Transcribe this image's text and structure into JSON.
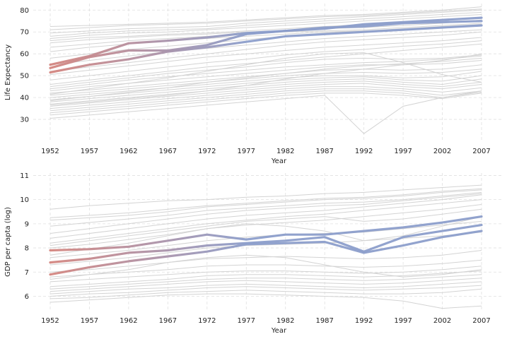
{
  "chart_data": [
    {
      "type": "line",
      "xlabel": "Year",
      "ylabel": "Life Expectancy",
      "x": [
        1952,
        1957,
        1962,
        1967,
        1972,
        1977,
        1982,
        1987,
        1992,
        1997,
        2002,
        2007
      ],
      "xticks": [
        "1952",
        "1957",
        "1962",
        "1967",
        "1972",
        "1977",
        "1982",
        "1987",
        "1992",
        "1997",
        "2002",
        "2007"
      ],
      "yticks": [
        "30",
        "40",
        "50",
        "60",
        "70",
        "80"
      ],
      "ylim": [
        20,
        83
      ],
      "grid": true,
      "colors": {
        "background": "#d3d3d3",
        "start": "#d4857f",
        "end": "#8c9ecb"
      },
      "highlight_series": [
        {
          "values": [
            55.0,
            59.0,
            64.8,
            66.0,
            67.5,
            69.5,
            70.5,
            71.5,
            73.5,
            74.5,
            75.5,
            76.5
          ]
        },
        {
          "values": [
            53.5,
            58.5,
            61.5,
            61.5,
            64.0,
            69.0,
            70.5,
            72.0,
            72.5,
            74.0,
            74.5,
            75.0
          ]
        },
        {
          "values": [
            51.5,
            55.0,
            57.5,
            61.0,
            63.0,
            65.5,
            68.0,
            69.0,
            70.0,
            71.0,
            72.0,
            73.0
          ]
        }
      ],
      "background_series": [
        [
          72.5,
          73.0,
          73.5,
          74.0,
          74.5,
          75.5,
          76.5,
          77.5,
          78.0,
          79.0,
          80.0,
          81.5
        ],
        [
          71.0,
          72.0,
          73.0,
          73.5,
          74.0,
          75.0,
          76.0,
          77.0,
          77.5,
          78.5,
          79.5,
          80.5
        ],
        [
          69.5,
          70.5,
          71.5,
          72.0,
          72.5,
          74.0,
          75.0,
          76.0,
          77.0,
          78.0,
          79.0,
          80.0
        ],
        [
          68.0,
          69.5,
          70.5,
          71.0,
          71.5,
          73.0,
          74.0,
          75.0,
          76.0,
          77.0,
          78.0,
          79.0
        ],
        [
          67.0,
          68.5,
          69.5,
          70.0,
          71.0,
          72.0,
          73.0,
          74.0,
          75.0,
          76.0,
          77.0,
          78.0
        ],
        [
          66.0,
          67.5,
          68.0,
          69.0,
          69.5,
          70.5,
          71.5,
          72.5,
          73.5,
          74.5,
          75.5,
          76.5
        ],
        [
          65.0,
          66.5,
          67.5,
          68.5,
          69.0,
          70.0,
          70.5,
          71.5,
          72.0,
          73.0,
          74.0,
          75.5
        ],
        [
          63.0,
          64.5,
          66.0,
          67.0,
          68.0,
          69.0,
          70.0,
          70.5,
          71.0,
          72.0,
          73.0,
          74.0
        ],
        [
          61.0,
          63.0,
          64.5,
          66.0,
          67.0,
          68.0,
          69.0,
          70.0,
          70.5,
          71.5,
          72.5,
          73.5
        ],
        [
          58.0,
          60.0,
          62.0,
          63.5,
          65.0,
          66.5,
          68.0,
          69.5,
          70.5,
          71.0,
          72.0,
          73.0
        ],
        [
          55.0,
          57.0,
          59.0,
          61.0,
          62.5,
          64.0,
          65.5,
          67.0,
          68.0,
          69.0,
          70.0,
          71.0
        ],
        [
          52.0,
          54.0,
          56.0,
          58.0,
          60.0,
          62.0,
          64.0,
          65.5,
          66.5,
          67.5,
          68.5,
          70.0
        ],
        [
          50.5,
          52.5,
          54.5,
          56.5,
          58.5,
          60.0,
          61.5,
          63.0,
          64.0,
          65.0,
          66.0,
          67.5
        ],
        [
          48.0,
          50.0,
          52.0,
          54.0,
          56.0,
          57.5,
          59.5,
          61.0,
          62.0,
          63.5,
          64.5,
          66.0
        ],
        [
          46.0,
          48.0,
          50.0,
          52.0,
          54.0,
          55.5,
          57.0,
          58.5,
          60.0,
          61.5,
          63.0,
          64.5
        ],
        [
          45.0,
          47.0,
          49.0,
          51.0,
          52.5,
          54.0,
          56.0,
          57.5,
          58.0,
          57.5,
          58.0,
          59.5
        ],
        [
          44.0,
          46.0,
          48.0,
          49.5,
          51.0,
          52.5,
          54.0,
          55.0,
          56.0,
          56.5,
          57.5,
          59.0
        ],
        [
          43.0,
          45.0,
          46.5,
          48.0,
          49.5,
          51.0,
          52.5,
          54.0,
          55.0,
          55.0,
          55.5,
          57.0
        ],
        [
          42.0,
          43.5,
          45.0,
          46.5,
          48.0,
          49.5,
          51.0,
          52.5,
          53.0,
          52.5,
          53.0,
          55.0
        ],
        [
          41.0,
          42.5,
          44.0,
          45.5,
          47.0,
          48.5,
          50.0,
          51.0,
          51.5,
          51.0,
          51.5,
          53.0
        ],
        [
          40.0,
          41.5,
          43.0,
          44.5,
          46.0,
          47.5,
          49.0,
          50.0,
          50.0,
          49.0,
          49.5,
          52.0
        ],
        [
          39.0,
          40.5,
          42.0,
          43.5,
          45.0,
          46.5,
          48.0,
          49.0,
          49.5,
          48.0,
          47.5,
          50.0
        ],
        [
          38.0,
          39.5,
          41.0,
          42.5,
          44.0,
          45.5,
          47.0,
          48.0,
          48.5,
          47.0,
          46.0,
          48.5
        ],
        [
          37.0,
          38.5,
          40.0,
          41.5,
          43.0,
          44.5,
          46.0,
          47.0,
          47.5,
          46.0,
          45.0,
          47.0
        ],
        [
          36.0,
          37.5,
          39.0,
          40.5,
          42.0,
          43.5,
          45.0,
          46.0,
          46.5,
          45.0,
          44.0,
          46.0
        ],
        [
          35.0,
          36.5,
          38.0,
          39.5,
          41.0,
          42.5,
          44.0,
          45.0,
          45.0,
          44.0,
          42.5,
          44.5
        ],
        [
          34.0,
          35.5,
          37.0,
          38.5,
          40.0,
          41.5,
          43.0,
          44.0,
          44.0,
          43.0,
          41.0,
          43.0
        ],
        [
          33.0,
          34.5,
          36.0,
          37.5,
          39.0,
          40.5,
          42.0,
          43.0,
          43.0,
          42.0,
          40.0,
          42.5
        ],
        [
          32.0,
          33.5,
          35.0,
          36.5,
          38.0,
          39.5,
          41.0,
          42.0,
          42.0,
          41.0,
          39.5,
          42.0
        ],
        [
          30.5,
          32.0,
          33.5,
          35.0,
          36.5,
          38.0,
          39.5,
          41.0,
          23.5,
          36.0,
          40.0,
          43.0
        ],
        [
          38.5,
          40.5,
          42.5,
          44.5,
          47.0,
          49.0,
          51.0,
          53.0,
          54.5,
          55.5,
          56.5,
          58.0
        ],
        [
          36.5,
          38.0,
          39.5,
          41.0,
          43.0,
          45.5,
          48.5,
          51.0,
          53.0,
          55.0,
          57.0,
          60.0
        ],
        [
          41.5,
          44.0,
          46.5,
          49.0,
          52.0,
          55.0,
          58.0,
          60.0,
          60.5,
          56.0,
          50.5,
          47.0
        ]
      ]
    },
    {
      "type": "line",
      "xlabel": "Year",
      "ylabel": "GDP per capta (log)",
      "x": [
        1952,
        1957,
        1962,
        1967,
        1972,
        1977,
        1982,
        1987,
        1992,
        1997,
        2002,
        2007
      ],
      "xticks": [
        "1952",
        "1957",
        "1962",
        "1967",
        "1972",
        "1977",
        "1982",
        "1987",
        "1992",
        "1997",
        "2002",
        "2007"
      ],
      "yticks": [
        "6",
        "7",
        "8",
        "9",
        "10",
        "11"
      ],
      "ylim": [
        5.4,
        11.1
      ],
      "grid": true,
      "colors": {
        "background": "#d3d3d3",
        "start": "#d4857f",
        "end": "#8c9ecb"
      },
      "highlight_series": [
        {
          "values": [
            7.9,
            7.95,
            8.05,
            8.3,
            8.55,
            8.35,
            8.55,
            8.55,
            8.7,
            8.85,
            9.05,
            9.3
          ]
        },
        {
          "values": [
            7.4,
            7.55,
            7.8,
            7.9,
            8.1,
            8.2,
            8.3,
            8.45,
            7.85,
            8.45,
            8.7,
            8.95
          ]
        },
        {
          "values": [
            6.9,
            7.2,
            7.45,
            7.65,
            7.85,
            8.15,
            8.2,
            8.25,
            7.8,
            8.1,
            8.45,
            8.7
          ]
        }
      ],
      "background_series": [
        [
          9.6,
          9.75,
          9.85,
          9.95,
          10.0,
          10.1,
          10.15,
          10.25,
          10.3,
          10.4,
          10.5,
          10.6
        ],
        [
          9.25,
          9.35,
          9.45,
          9.6,
          9.75,
          9.85,
          9.95,
          10.05,
          10.1,
          10.2,
          10.35,
          10.45
        ],
        [
          9.15,
          9.25,
          9.35,
          9.5,
          9.7,
          9.8,
          9.9,
          10.0,
          10.05,
          10.15,
          10.3,
          10.4
        ],
        [
          8.9,
          9.05,
          9.2,
          9.35,
          9.55,
          9.65,
          9.75,
          9.85,
          9.9,
          10.0,
          10.15,
          10.3
        ],
        [
          8.6,
          8.8,
          9.0,
          9.2,
          9.4,
          9.55,
          9.65,
          9.75,
          9.8,
          9.95,
          10.1,
          10.25
        ],
        [
          8.4,
          8.6,
          8.8,
          9.0,
          9.2,
          9.35,
          9.45,
          9.55,
          9.7,
          9.85,
          10.0,
          10.2
        ],
        [
          8.2,
          8.4,
          8.6,
          8.8,
          9.0,
          9.15,
          9.3,
          9.4,
          9.55,
          9.7,
          9.85,
          10.0
        ],
        [
          8.0,
          8.15,
          8.35,
          8.55,
          8.8,
          8.95,
          9.05,
          9.15,
          9.3,
          9.45,
          9.6,
          9.8
        ],
        [
          7.6,
          7.75,
          7.9,
          8.1,
          8.3,
          8.45,
          8.55,
          8.6,
          8.65,
          8.8,
          8.95,
          9.1
        ],
        [
          7.3,
          7.45,
          7.6,
          7.8,
          8.0,
          8.1,
          8.15,
          8.2,
          8.3,
          8.4,
          8.5,
          8.65
        ],
        [
          7.0,
          7.1,
          7.25,
          7.4,
          7.55,
          7.6,
          7.65,
          7.6,
          7.55,
          7.6,
          7.7,
          7.9
        ],
        [
          6.8,
          6.9,
          7.0,
          7.1,
          7.25,
          7.3,
          7.3,
          7.25,
          7.2,
          7.25,
          7.35,
          7.5
        ],
        [
          6.6,
          6.7,
          6.8,
          6.9,
          7.0,
          7.05,
          7.05,
          7.0,
          6.95,
          7.0,
          7.1,
          7.25
        ],
        [
          6.4,
          6.5,
          6.6,
          6.7,
          6.85,
          6.9,
          6.9,
          6.85,
          6.8,
          6.85,
          6.95,
          7.05
        ],
        [
          6.3,
          6.4,
          6.5,
          6.6,
          6.7,
          6.75,
          6.75,
          6.7,
          6.65,
          6.7,
          6.8,
          6.9
        ],
        [
          6.2,
          6.3,
          6.4,
          6.5,
          6.6,
          6.65,
          6.6,
          6.55,
          6.5,
          6.55,
          6.65,
          6.75
        ],
        [
          6.1,
          6.2,
          6.3,
          6.35,
          6.45,
          6.5,
          6.45,
          6.4,
          6.35,
          6.4,
          6.5,
          6.6
        ],
        [
          6.0,
          6.1,
          6.15,
          6.25,
          6.35,
          6.4,
          6.35,
          6.3,
          6.25,
          6.3,
          6.35,
          6.45
        ],
        [
          5.9,
          5.95,
          6.05,
          6.15,
          6.2,
          6.25,
          6.2,
          6.15,
          6.1,
          6.1,
          6.15,
          6.3
        ],
        [
          5.75,
          5.85,
          5.95,
          6.05,
          6.1,
          6.1,
          6.05,
          6.0,
          5.95,
          5.8,
          5.5,
          5.6
        ],
        [
          6.7,
          6.9,
          7.1,
          7.4,
          7.6,
          7.7,
          7.6,
          7.3,
          7.0,
          6.8,
          6.9,
          7.1
        ],
        [
          7.7,
          7.95,
          8.2,
          8.5,
          8.8,
          9.0,
          8.9,
          8.7,
          8.3,
          8.5,
          8.9,
          9.3
        ],
        [
          8.1,
          8.3,
          8.5,
          8.7,
          8.9,
          9.1,
          9.2,
          9.3,
          9.1,
          9.2,
          9.4,
          9.6
        ]
      ]
    }
  ]
}
